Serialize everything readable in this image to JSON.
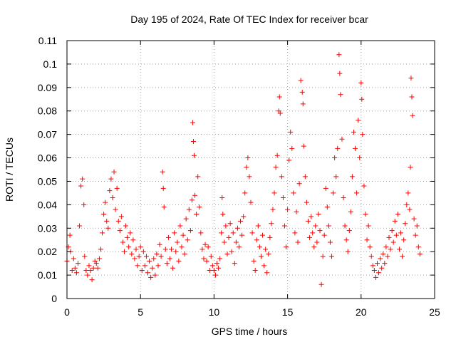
{
  "chart_data": {
    "type": "scatter",
    "title": "Day 195 of 2024, Rate Of TEC Index for receiver bcar",
    "xlabel": "GPS time / hours",
    "ylabel": "ROTI / TECUs",
    "xlim": [
      0,
      25
    ],
    "ylim": [
      0,
      0.11
    ],
    "x_ticks": [
      0,
      5,
      10,
      15,
      20,
      25
    ],
    "x_tick_labels": [
      "0",
      "5",
      "10",
      "15",
      "20",
      "25"
    ],
    "y_ticks": [
      0,
      0.01,
      0.02,
      0.03,
      0.04,
      0.05,
      0.06,
      0.07,
      0.08,
      0.09,
      0.1,
      0.11
    ],
    "y_tick_labels": [
      "0",
      "0.01",
      "0.02",
      "0.03",
      "0.04",
      "0.05",
      "0.06",
      "0.07",
      "0.08",
      "0.09",
      "0.1",
      "0.11"
    ],
    "grid": true,
    "marker": "+",
    "color": "#ff0000",
    "series": [
      {
        "points": [
          [
            0.0,
            0.016
          ],
          [
            0.1,
            0.022
          ],
          [
            0.2,
            0.027
          ],
          [
            0.25,
            0.02
          ],
          [
            0.35,
            0.012
          ],
          [
            0.45,
            0.017
          ],
          [
            0.55,
            0.013
          ],
          [
            0.65,
            0.011
          ],
          [
            0.75,
            0.015
          ],
          [
            0.85,
            0.031
          ],
          [
            0.95,
            0.048
          ],
          [
            1.05,
            0.051
          ],
          [
            1.15,
            0.04
          ],
          [
            1.2,
            0.018
          ],
          [
            1.3,
            0.012
          ],
          [
            1.4,
            0.01
          ],
          [
            1.5,
            0.014
          ],
          [
            1.6,
            0.012
          ],
          [
            1.7,
            0.008
          ],
          [
            1.8,
            0.013
          ],
          [
            1.9,
            0.016
          ],
          [
            2.0,
            0.015
          ],
          [
            2.1,
            0.013
          ],
          [
            2.2,
            0.017
          ],
          [
            2.3,
            0.021
          ],
          [
            2.4,
            0.028
          ],
          [
            2.5,
            0.036
          ],
          [
            2.6,
            0.041
          ],
          [
            2.7,
            0.033
          ],
          [
            2.8,
            0.03
          ],
          [
            2.9,
            0.046
          ],
          [
            3.0,
            0.051
          ],
          [
            3.1,
            0.043
          ],
          [
            3.2,
            0.054
          ],
          [
            3.3,
            0.038
          ],
          [
            3.4,
            0.047
          ],
          [
            3.5,
            0.033
          ],
          [
            3.6,
            0.029
          ],
          [
            3.7,
            0.035
          ],
          [
            3.8,
            0.024
          ],
          [
            3.9,
            0.02
          ],
          [
            4.0,
            0.031
          ],
          [
            4.1,
            0.026
          ],
          [
            4.2,
            0.022
          ],
          [
            4.3,
            0.028
          ],
          [
            4.4,
            0.019
          ],
          [
            4.5,
            0.025
          ],
          [
            4.6,
            0.017
          ],
          [
            4.7,
            0.021
          ],
          [
            4.8,
            0.014
          ],
          [
            4.9,
            0.018
          ],
          [
            5.0,
            0.022
          ],
          [
            5.1,
            0.012
          ],
          [
            5.2,
            0.02
          ],
          [
            5.3,
            0.014
          ],
          [
            5.4,
            0.018
          ],
          [
            5.5,
            0.011
          ],
          [
            5.6,
            0.016
          ],
          [
            5.7,
            0.009
          ],
          [
            5.8,
            0.013
          ],
          [
            5.9,
            0.017
          ],
          [
            6.0,
            0.01
          ],
          [
            6.1,
            0.019
          ],
          [
            6.2,
            0.014
          ],
          [
            6.3,
            0.023
          ],
          [
            6.4,
            0.018
          ],
          [
            6.5,
            0.054
          ],
          [
            6.55,
            0.047
          ],
          [
            6.6,
            0.039
          ],
          [
            6.7,
            0.021
          ],
          [
            6.8,
            0.015
          ],
          [
            6.9,
            0.026
          ],
          [
            7.0,
            0.017
          ],
          [
            7.1,
            0.021
          ],
          [
            7.2,
            0.013
          ],
          [
            7.3,
            0.028
          ],
          [
            7.4,
            0.02
          ],
          [
            7.5,
            0.024
          ],
          [
            7.6,
            0.016
          ],
          [
            7.7,
            0.031
          ],
          [
            7.8,
            0.022
          ],
          [
            7.9,
            0.027
          ],
          [
            8.0,
            0.019
          ],
          [
            8.1,
            0.034
          ],
          [
            8.2,
            0.025
          ],
          [
            8.3,
            0.038
          ],
          [
            8.4,
            0.029
          ],
          [
            8.5,
            0.042
          ],
          [
            8.55,
            0.075
          ],
          [
            8.6,
            0.067
          ],
          [
            8.65,
            0.061
          ],
          [
            8.7,
            0.044
          ],
          [
            8.8,
            0.036
          ],
          [
            8.9,
            0.052
          ],
          [
            9.0,
            0.039
          ],
          [
            9.1,
            0.028
          ],
          [
            9.2,
            0.021
          ],
          [
            9.3,
            0.017
          ],
          [
            9.4,
            0.023
          ],
          [
            9.5,
            0.016
          ],
          [
            9.6,
            0.022
          ],
          [
            9.7,
            0.012
          ],
          [
            9.8,
            0.018
          ],
          [
            9.9,
            0.014
          ],
          [
            10.0,
            0.012
          ],
          [
            10.1,
            0.01
          ],
          [
            10.2,
            0.015
          ],
          [
            10.3,
            0.013
          ],
          [
            10.4,
            0.017
          ],
          [
            10.5,
            0.028
          ],
          [
            10.55,
            0.043
          ],
          [
            10.6,
            0.036
          ],
          [
            10.7,
            0.024
          ],
          [
            10.8,
            0.031
          ],
          [
            10.9,
            0.019
          ],
          [
            11.0,
            0.026
          ],
          [
            11.1,
            0.032
          ],
          [
            11.2,
            0.02
          ],
          [
            11.3,
            0.028
          ],
          [
            11.4,
            0.015
          ],
          [
            11.5,
            0.024
          ],
          [
            11.6,
            0.03
          ],
          [
            11.7,
            0.022
          ],
          [
            11.8,
            0.033
          ],
          [
            11.9,
            0.027
          ],
          [
            12.0,
            0.035
          ],
          [
            12.1,
            0.045
          ],
          [
            12.2,
            0.056
          ],
          [
            12.3,
            0.06
          ],
          [
            12.4,
            0.052
          ],
          [
            12.5,
            0.041
          ],
          [
            12.6,
            0.028
          ],
          [
            12.7,
            0.016
          ],
          [
            12.8,
            0.012
          ],
          [
            12.9,
            0.025
          ],
          [
            13.0,
            0.031
          ],
          [
            13.1,
            0.022
          ],
          [
            13.2,
            0.018
          ],
          [
            13.3,
            0.027
          ],
          [
            13.4,
            0.014
          ],
          [
            13.5,
            0.021
          ],
          [
            13.6,
            0.011
          ],
          [
            13.7,
            0.019
          ],
          [
            13.8,
            0.026
          ],
          [
            13.9,
            0.032
          ],
          [
            14.0,
            0.038
          ],
          [
            14.1,
            0.045
          ],
          [
            14.2,
            0.056
          ],
          [
            14.3,
            0.061
          ],
          [
            14.4,
            0.08
          ],
          [
            14.45,
            0.086
          ],
          [
            14.5,
            0.079
          ],
          [
            14.6,
            0.052
          ],
          [
            14.7,
            0.043
          ],
          [
            14.8,
            0.031
          ],
          [
            14.9,
            0.022
          ],
          [
            15.0,
            0.038
          ],
          [
            15.1,
            0.059
          ],
          [
            15.2,
            0.071
          ],
          [
            15.3,
            0.064
          ],
          [
            15.4,
            0.045
          ],
          [
            15.5,
            0.028
          ],
          [
            15.6,
            0.037
          ],
          [
            15.7,
            0.024
          ],
          [
            15.8,
            0.049
          ],
          [
            15.9,
            0.093
          ],
          [
            16.0,
            0.088
          ],
          [
            16.05,
            0.083
          ],
          [
            16.1,
            0.065
          ],
          [
            16.2,
            0.052
          ],
          [
            16.3,
            0.041
          ],
          [
            16.4,
            0.033
          ],
          [
            16.5,
            0.026
          ],
          [
            16.6,
            0.035
          ],
          [
            16.7,
            0.028
          ],
          [
            16.8,
            0.022
          ],
          [
            16.9,
            0.031
          ],
          [
            17.0,
            0.024
          ],
          [
            17.1,
            0.036
          ],
          [
            17.2,
            0.029
          ],
          [
            17.3,
            0.006
          ],
          [
            17.4,
            0.018
          ],
          [
            17.5,
            0.027
          ],
          [
            17.6,
            0.047
          ],
          [
            17.7,
            0.039
          ],
          [
            17.8,
            0.031
          ],
          [
            17.9,
            0.024
          ],
          [
            18.0,
            0.018
          ],
          [
            18.1,
            0.045
          ],
          [
            18.2,
            0.06
          ],
          [
            18.3,
            0.052
          ],
          [
            18.4,
            0.064
          ],
          [
            18.5,
            0.104
          ],
          [
            18.55,
            0.096
          ],
          [
            18.6,
            0.087
          ],
          [
            18.7,
            0.068
          ],
          [
            18.8,
            0.043
          ],
          [
            18.9,
            0.031
          ],
          [
            19.0,
            0.025
          ],
          [
            19.1,
            0.02
          ],
          [
            19.2,
            0.029
          ],
          [
            19.3,
            0.037
          ],
          [
            19.4,
            0.052
          ],
          [
            19.5,
            0.071
          ],
          [
            19.6,
            0.064
          ],
          [
            19.7,
            0.045
          ],
          [
            19.8,
            0.076
          ],
          [
            19.9,
            0.06
          ],
          [
            20.0,
            0.092
          ],
          [
            20.05,
            0.085
          ],
          [
            20.1,
            0.07
          ],
          [
            20.2,
            0.048
          ],
          [
            20.3,
            0.036
          ],
          [
            20.4,
            0.025
          ],
          [
            20.5,
            0.031
          ],
          [
            20.6,
            0.022
          ],
          [
            20.7,
            0.018
          ],
          [
            20.8,
            0.014
          ],
          [
            20.9,
            0.012
          ],
          [
            21.0,
            0.009
          ],
          [
            21.1,
            0.015
          ],
          [
            21.2,
            0.011
          ],
          [
            21.3,
            0.017
          ],
          [
            21.4,
            0.013
          ],
          [
            21.5,
            0.019
          ],
          [
            21.6,
            0.015
          ],
          [
            21.7,
            0.022
          ],
          [
            21.8,
            0.018
          ],
          [
            21.9,
            0.026
          ],
          [
            22.0,
            0.021
          ],
          [
            22.1,
            0.029
          ],
          [
            22.2,
            0.024
          ],
          [
            22.3,
            0.033
          ],
          [
            22.4,
            0.027
          ],
          [
            22.5,
            0.036
          ],
          [
            22.6,
            0.021
          ],
          [
            22.7,
            0.028
          ],
          [
            22.8,
            0.018
          ],
          [
            22.9,
            0.025
          ],
          [
            23.0,
            0.032
          ],
          [
            23.1,
            0.04
          ],
          [
            23.2,
            0.045
          ],
          [
            23.3,
            0.038
          ],
          [
            23.35,
            0.056
          ],
          [
            23.4,
            0.094
          ],
          [
            23.45,
            0.086
          ],
          [
            23.5,
            0.078
          ],
          [
            23.6,
            0.034
          ],
          [
            23.7,
            0.027
          ],
          [
            23.8,
            0.031
          ],
          [
            23.9,
            0.022
          ],
          [
            24.0,
            0.019
          ]
        ]
      }
    ]
  }
}
